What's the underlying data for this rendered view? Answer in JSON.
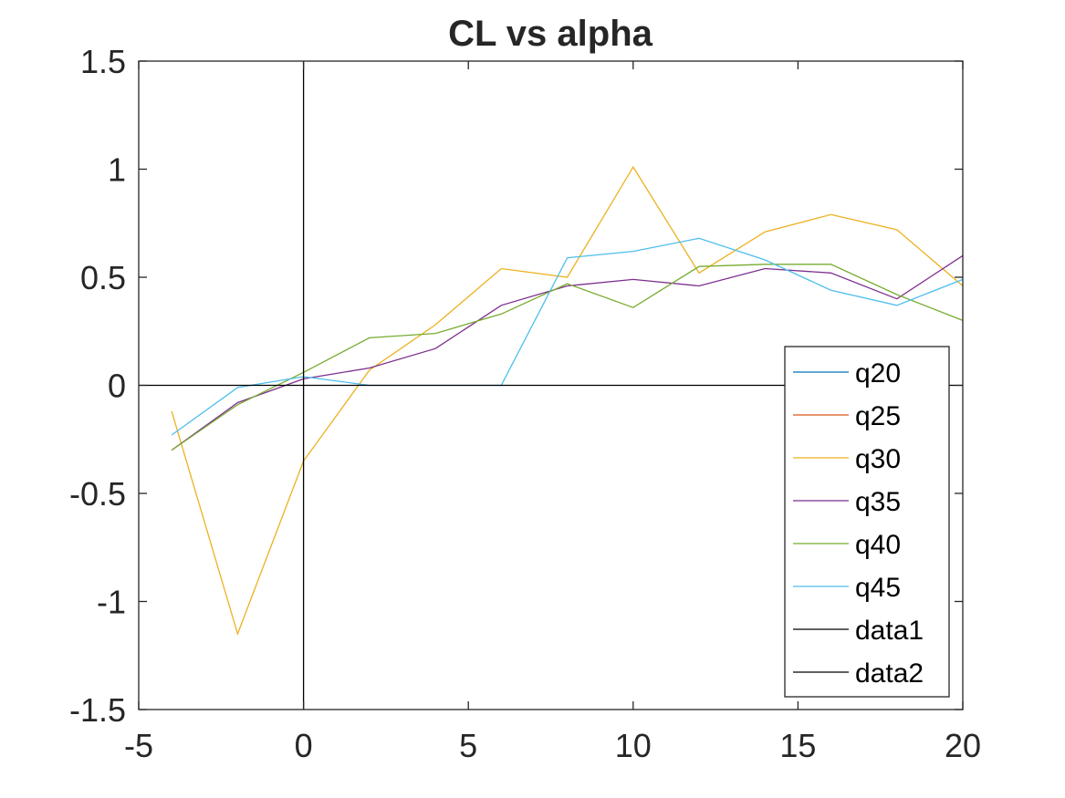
{
  "chart_data": {
    "type": "line",
    "title": "CL vs alpha",
    "xlabel": "",
    "ylabel": "",
    "xlim": [
      -5,
      20
    ],
    "ylim": [
      -1.5,
      1.5
    ],
    "xticks": [
      -5,
      0,
      5,
      10,
      15,
      20
    ],
    "yticks": [
      -1.5,
      -1,
      -0.5,
      0,
      0.5,
      1,
      1.5
    ],
    "xtick_labels": [
      "-5",
      "0",
      "5",
      "10",
      "15",
      "20"
    ],
    "ytick_labels": [
      "-1.5",
      "-1",
      "-0.5",
      "0",
      "0.5",
      "1",
      "1.5"
    ],
    "grid": false,
    "legend_position": "bottom-right",
    "series": [
      {
        "name": "q20",
        "color": "#0072BD",
        "x": [],
        "y": []
      },
      {
        "name": "q25",
        "color": "#D95319",
        "x": [],
        "y": []
      },
      {
        "name": "q30",
        "color": "#EDB120",
        "x": [
          -4,
          -2,
          0,
          2,
          4,
          6,
          8,
          10,
          12,
          14,
          16,
          18,
          20
        ],
        "y": [
          -0.12,
          -1.15,
          -0.35,
          0.07,
          0.28,
          0.54,
          0.5,
          1.01,
          0.52,
          0.71,
          0.79,
          0.72,
          0.46
        ]
      },
      {
        "name": "q35",
        "color": "#7E2F8E",
        "x": [
          -4,
          -2,
          0,
          2,
          4,
          6,
          8,
          10,
          12,
          14,
          16,
          18,
          20
        ],
        "y": [
          -0.3,
          -0.08,
          0.03,
          0.08,
          0.17,
          0.37,
          0.46,
          0.49,
          0.46,
          0.54,
          0.52,
          0.4,
          0.6
        ]
      },
      {
        "name": "q40",
        "color": "#77AC30",
        "x": [
          -4,
          -2,
          0,
          2,
          4,
          6,
          8,
          10,
          12,
          14,
          16,
          18,
          20
        ],
        "y": [
          -0.3,
          -0.09,
          0.06,
          0.22,
          0.24,
          0.33,
          0.47,
          0.36,
          0.55,
          0.56,
          0.56,
          0.42,
          0.3
        ]
      },
      {
        "name": "q45",
        "color": "#4DBEEE",
        "x": [
          -4,
          -2,
          0,
          2,
          4,
          6,
          8,
          10,
          12,
          14,
          16,
          18,
          20
        ],
        "y": [
          -0.23,
          -0.01,
          0.04,
          0.0,
          0.0,
          0.0,
          0.59,
          0.62,
          0.68,
          0.58,
          0.44,
          0.37,
          0.49
        ]
      },
      {
        "name": "data1",
        "color": "#000000",
        "x": [
          -5,
          20
        ],
        "y": [
          0,
          0
        ]
      },
      {
        "name": "data2",
        "color": "#000000",
        "x": [
          0,
          0
        ],
        "y": [
          -1.5,
          1.5
        ]
      }
    ]
  }
}
